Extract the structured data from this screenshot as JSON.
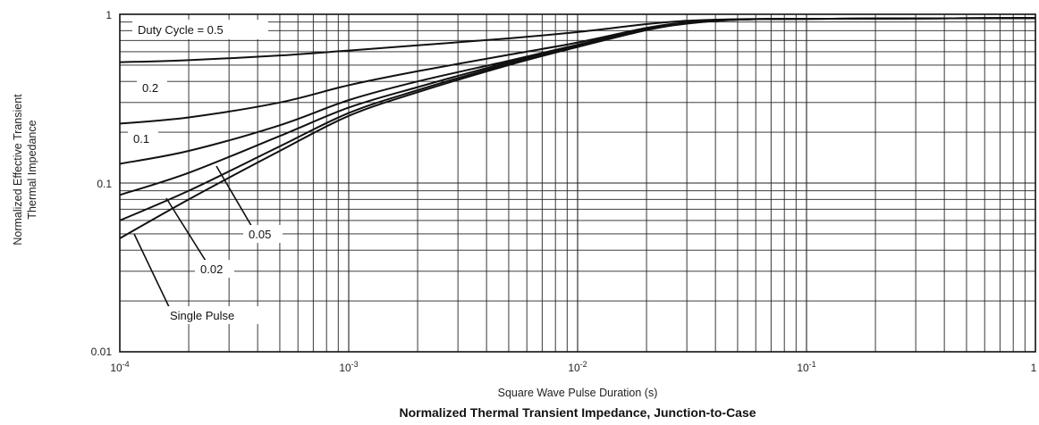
{
  "chart_data": {
    "type": "line",
    "title": "Normalized Thermal Transient Impedance, Junction-to-Case",
    "xlabel": "Square Wave Pulse Duration (s)",
    "ylabel_line1": "Normalized Effective Transient",
    "ylabel_line2": "Thermal Impedance",
    "x_scale": "log",
    "y_scale": "log",
    "xlim": [
      0.0001,
      1
    ],
    "ylim": [
      0.01,
      1
    ],
    "grid": true,
    "x_ticks": [
      {
        "value": 0.0001,
        "base": "10",
        "exp": "-4"
      },
      {
        "value": 0.001,
        "base": "10",
        "exp": "-3"
      },
      {
        "value": 0.01,
        "base": "10",
        "exp": "-2"
      },
      {
        "value": 0.1,
        "base": "10",
        "exp": "-1"
      },
      {
        "value": 1,
        "base": "1",
        "exp": ""
      }
    ],
    "y_ticks": [
      {
        "value": 0.01,
        "label": "0.01"
      },
      {
        "value": 0.1,
        "label": "0.1"
      },
      {
        "value": 1,
        "label": "1"
      }
    ],
    "series": [
      {
        "name": "Duty Cycle = 0.5",
        "x": [
          0.0001,
          0.0002,
          0.0005,
          0.001,
          0.002,
          0.005,
          0.01,
          0.02,
          0.03,
          0.05,
          0.1,
          1
        ],
        "y": [
          0.52,
          0.535,
          0.57,
          0.61,
          0.655,
          0.72,
          0.785,
          0.875,
          0.915,
          0.935,
          0.94,
          0.95
        ]
      },
      {
        "name": "0.2",
        "x": [
          0.0001,
          0.0002,
          0.0005,
          0.001,
          0.002,
          0.005,
          0.01,
          0.02,
          0.03,
          0.05,
          0.1,
          1
        ],
        "y": [
          0.225,
          0.245,
          0.3,
          0.38,
          0.46,
          0.575,
          0.68,
          0.83,
          0.895,
          0.93,
          0.94,
          0.95
        ]
      },
      {
        "name": "0.1",
        "x": [
          0.0001,
          0.0002,
          0.0005,
          0.001,
          0.002,
          0.005,
          0.01,
          0.02,
          0.03,
          0.05,
          0.1,
          1
        ],
        "y": [
          0.13,
          0.155,
          0.22,
          0.31,
          0.4,
          0.53,
          0.66,
          0.82,
          0.89,
          0.93,
          0.94,
          0.95
        ]
      },
      {
        "name": "0.05",
        "x": [
          0.0001,
          0.0002,
          0.0005,
          0.001,
          0.002,
          0.005,
          0.01,
          0.02,
          0.03,
          0.05,
          0.1,
          1
        ],
        "y": [
          0.085,
          0.115,
          0.19,
          0.28,
          0.37,
          0.52,
          0.65,
          0.815,
          0.885,
          0.93,
          0.94,
          0.95
        ]
      },
      {
        "name": "0.02",
        "x": [
          0.0001,
          0.0002,
          0.0005,
          0.001,
          0.002,
          0.005,
          0.01,
          0.02,
          0.03,
          0.05,
          0.1,
          1
        ],
        "y": [
          0.06,
          0.09,
          0.165,
          0.26,
          0.355,
          0.51,
          0.645,
          0.81,
          0.885,
          0.93,
          0.94,
          0.95
        ]
      },
      {
        "name": "Single Pulse",
        "x": [
          0.0001,
          0.0002,
          0.0005,
          0.001,
          0.002,
          0.005,
          0.01,
          0.02,
          0.03,
          0.05,
          0.1,
          1
        ],
        "y": [
          0.047,
          0.08,
          0.155,
          0.25,
          0.345,
          0.5,
          0.64,
          0.805,
          0.88,
          0.93,
          0.94,
          0.95
        ]
      }
    ],
    "annotations": [
      {
        "text": "Duty Cycle = 0.5",
        "series": "Duty Cycle = 0.5"
      },
      {
        "text": "0.2",
        "series": "0.2"
      },
      {
        "text": "0.1",
        "series": "0.1"
      },
      {
        "text": "0.05",
        "series": "0.05"
      },
      {
        "text": "0.02",
        "series": "0.02"
      },
      {
        "text": "Single Pulse",
        "series": "Single Pulse"
      }
    ]
  }
}
